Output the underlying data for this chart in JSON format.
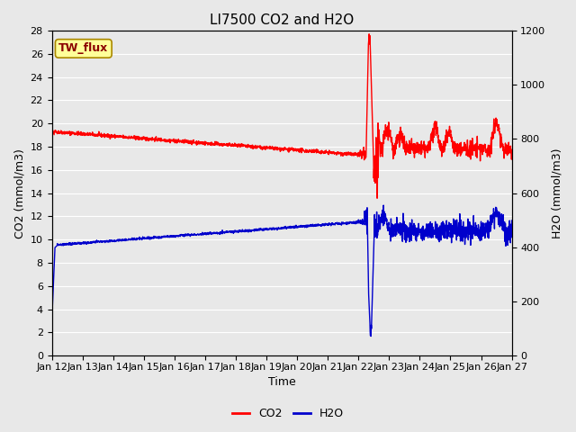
{
  "title": "LI7500 CO2 and H2O",
  "xlabel": "Time",
  "ylabel_left": "CO2 (mmol/m3)",
  "ylabel_right": "H2O (mmol/m3)",
  "ylim_left": [
    0,
    28
  ],
  "ylim_right": [
    0,
    1200
  ],
  "yticks_left": [
    0,
    2,
    4,
    6,
    8,
    10,
    12,
    14,
    16,
    18,
    20,
    22,
    24,
    26,
    28
  ],
  "yticks_right": [
    0,
    200,
    400,
    600,
    800,
    1000,
    1200
  ],
  "n_days": 15,
  "xtick_labels": [
    "Jan 12",
    "Jan 13",
    "Jan 14",
    "Jan 15",
    "Jan 16",
    "Jan 17",
    "Jan 18",
    "Jan 19",
    "Jan 20",
    "Jan 21",
    "Jan 22",
    "Jan 23",
    "Jan 24",
    "Jan 25",
    "Jan 26",
    "Jan 27"
  ],
  "co2_color": "#FF0000",
  "h2o_color": "#0000CC",
  "background_color": "#E8E8E8",
  "grid_color": "#FFFFFF",
  "legend_label_co2": "CO2",
  "legend_label_h2o": "H2O",
  "annotation_text": "TW_flux",
  "annotation_bg": "#FFFF99",
  "annotation_border": "#AA8800",
  "title_fontsize": 11,
  "axis_label_fontsize": 9,
  "tick_fontsize": 8,
  "legend_fontsize": 9,
  "linewidth": 1.0
}
